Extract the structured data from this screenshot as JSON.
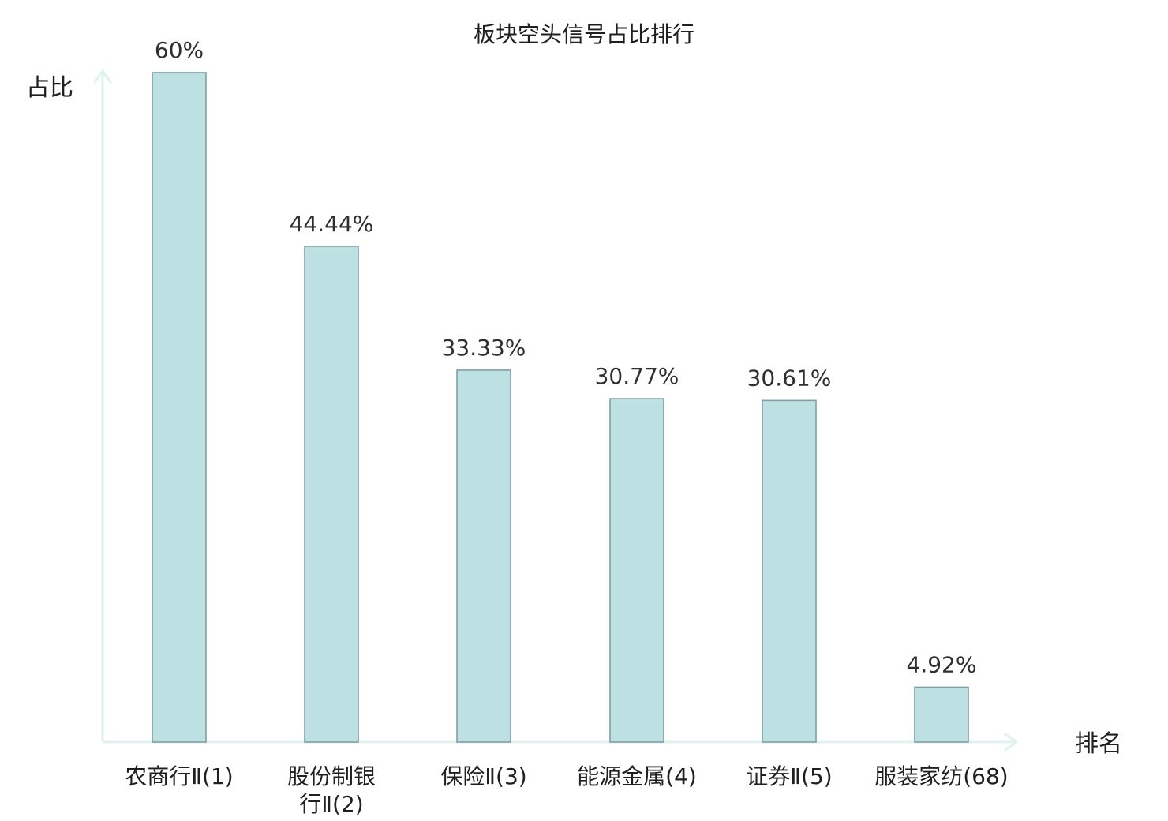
{
  "chart_data": {
    "type": "bar",
    "title": "板块空头信号占比排行",
    "xlabel": "排名",
    "ylabel": "占比",
    "ylim": [
      0,
      60
    ],
    "grid": false,
    "categories": [
      [
        "农商行Ⅱ(1)"
      ],
      [
        "股份制银",
        "行Ⅱ(2)"
      ],
      [
        "保险Ⅱ(3)"
      ],
      [
        "能源金属(4)"
      ],
      [
        "证券Ⅱ(5)"
      ],
      [
        "服装家纺(68)"
      ]
    ],
    "values": [
      60,
      44.44,
      33.33,
      30.77,
      30.61,
      4.92
    ],
    "value_labels": [
      "60%",
      "44.44%",
      "33.33%",
      "30.77%",
      "30.61%",
      "4.92%"
    ],
    "highlight_index": 5,
    "colors": {
      "bar_fill": "#bde1e3",
      "bar_stroke": "#7f9ea2",
      "axis": "#dff2ef",
      "text": "#1f1f1f",
      "value_text": "#2f2f2f",
      "highlight": "#e10000"
    }
  }
}
